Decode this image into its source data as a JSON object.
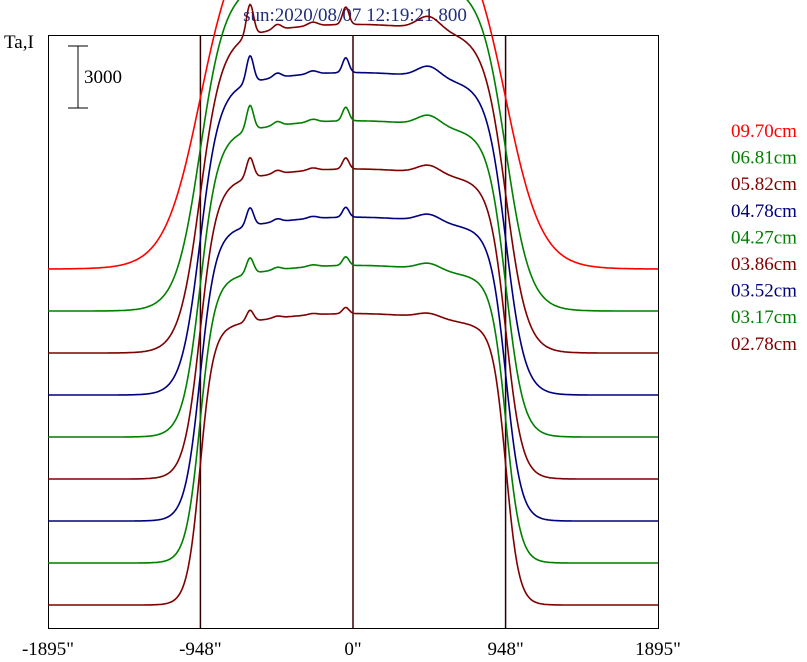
{
  "chart_data": {
    "type": "line",
    "title": "sun:2020/08/07 12:19:21.800",
    "ylabel": "Ta,I",
    "scale_bar_label": "3000",
    "x_ticks": [
      {
        "value": -1895,
        "label": "-1895\""
      },
      {
        "value": -948,
        "label": "-948\""
      },
      {
        "value": 0,
        "label": "0\""
      },
      {
        "value": 948,
        "label": "948\""
      },
      {
        "value": 1895,
        "label": "1895\""
      }
    ],
    "xlim": [
      -1895,
      1895
    ],
    "vertical_markers": [
      -948,
      0,
      948
    ],
    "series": [
      {
        "name": "09.70cm",
        "color": "#ff0000",
        "disk_level": 17100,
        "limb_width": 110,
        "peak_scale": 1.0
      },
      {
        "name": "06.81cm",
        "color": "#007f00",
        "disk_level": 16200,
        "limb_width": 75,
        "peak_scale": 0.8
      },
      {
        "name": "05.82cm",
        "color": "#7f0000",
        "disk_level": 15900,
        "limb_width": 65,
        "peak_scale": 0.7
      },
      {
        "name": "04.78cm",
        "color": "#00007f",
        "disk_level": 15600,
        "limb_width": 58,
        "peak_scale": 0.6
      },
      {
        "name": "04.27cm",
        "color": "#007f00",
        "disk_level": 15300,
        "limb_width": 54,
        "peak_scale": 0.55
      },
      {
        "name": "03.86cm",
        "color": "#7f0000",
        "disk_level": 15000,
        "limb_width": 50,
        "peak_scale": 0.45
      },
      {
        "name": "03.52cm",
        "color": "#00007f",
        "disk_level": 14700,
        "limb_width": 47,
        "peak_scale": 0.4
      },
      {
        "name": "03.17cm",
        "color": "#007f00",
        "disk_level": 14400,
        "limb_width": 44,
        "peak_scale": 0.35
      },
      {
        "name": "02.78cm",
        "color": "#7f0000",
        "disk_level": 14100,
        "limb_width": 40,
        "peak_scale": 0.25
      }
    ]
  }
}
